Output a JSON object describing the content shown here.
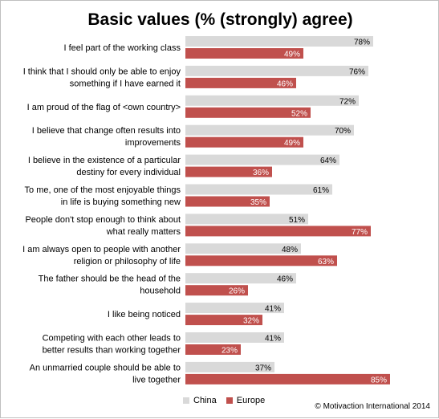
{
  "chart_data": {
    "type": "bar",
    "orientation": "horizontal",
    "title": "Basic values (% (strongly) agree)",
    "categories": [
      [
        "I feel part of the working class"
      ],
      [
        "I think that I should only be able to enjoy",
        "something if I have earned it"
      ],
      [
        "I am proud of the flag of <own country>"
      ],
      [
        "I believe that change often results into",
        "improvements"
      ],
      [
        "I believe in the existence of  a particular",
        "destiny for every individual"
      ],
      [
        "To me, one of the most enjoyable things",
        "in life is buying something new"
      ],
      [
        "People don't stop enough to think about",
        "what really matters"
      ],
      [
        "I am always open to people with another",
        "religion or philosophy of life"
      ],
      [
        "The father should be the head of the",
        "household"
      ],
      [
        "I like being noticed"
      ],
      [
        "Competing with each other leads to",
        "better results than working together"
      ],
      [
        "An unmarried couple should be able to",
        "live together"
      ]
    ],
    "series": [
      {
        "name": "China",
        "color": "#d9d9d9",
        "values": [
          78,
          76,
          72,
          70,
          64,
          61,
          51,
          48,
          46,
          41,
          41,
          37
        ]
      },
      {
        "name": "Europe",
        "color": "#c0504d",
        "values": [
          49,
          46,
          52,
          49,
          36,
          35,
          77,
          63,
          26,
          32,
          23,
          85
        ]
      }
    ],
    "value_labels": {
      "China": [
        "78%",
        "76%",
        "72%",
        "70%",
        "64%",
        "61%",
        "51%",
        "48%",
        "46%",
        "41%",
        "41%",
        "37%"
      ],
      "Europe": [
        "49%",
        "46%",
        "52%",
        "49%",
        "36%",
        "35%",
        "77%",
        "63%",
        "26%",
        "32%",
        "23%",
        "85%"
      ]
    },
    "xlim": [
      0,
      100
    ],
    "grid": false,
    "legend_position": "bottom"
  },
  "footer": {
    "copyright": "© Motivaction International 2014"
  }
}
